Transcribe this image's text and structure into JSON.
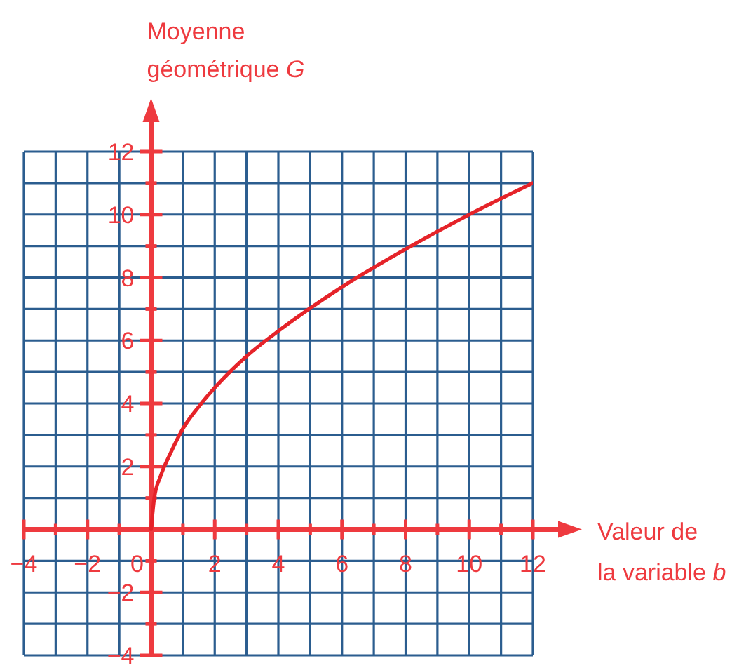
{
  "chart_data": {
    "type": "line",
    "xlabel": "Valeur de\nla variable b",
    "ylabel": "Moyenne\ngéométrique G",
    "x": [
      0,
      0.1,
      0.3,
      0.6,
      1,
      1.5,
      2,
      3,
      4,
      6,
      8,
      10,
      12
    ],
    "values": [
      0,
      1,
      1.7,
      2.4,
      3.2,
      3.9,
      4.5,
      5.5,
      6.3,
      7.7,
      8.9,
      10,
      11
    ],
    "color": "#e52329",
    "xlim": [
      -4,
      12
    ],
    "ylim": [
      -4,
      12
    ],
    "xticks": [
      {
        "value": -4,
        "label": "−4"
      },
      {
        "value": -3,
        "label": null
      },
      {
        "value": -2,
        "label": "−2"
      },
      {
        "value": -1,
        "label": null
      },
      0,
      {
        "value": 1,
        "label": null
      },
      2,
      {
        "value": 3,
        "label": null
      },
      4,
      {
        "value": 5,
        "label": null
      },
      6,
      {
        "value": 7,
        "label": null
      },
      8,
      {
        "value": 9,
        "label": null
      },
      10,
      {
        "value": 11,
        "label": null
      },
      12
    ],
    "yticks": [
      {
        "value": -4,
        "label": "−4"
      },
      {
        "value": -3,
        "label": null
      },
      {
        "value": -2,
        "label": "−2"
      },
      {
        "value": -1,
        "label": null
      },
      {
        "value": 0,
        "label": null
      },
      {
        "value": 1,
        "label": null
      },
      2,
      {
        "value": 3,
        "label": null
      },
      4,
      {
        "value": 5,
        "label": null
      },
      6,
      {
        "value": 7,
        "label": null
      },
      8,
      {
        "value": 9,
        "label": null
      },
      10,
      {
        "value": 11,
        "label": null
      },
      12
    ],
    "grid": true,
    "marker": "none",
    "line_style": "solid"
  }
}
